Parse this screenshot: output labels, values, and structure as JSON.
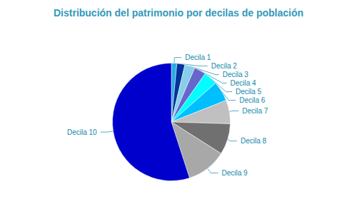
{
  "chart_data": {
    "type": "pie",
    "title": "Distribución del patrimonio por decilas de población",
    "categories": [
      "Decila 1",
      "Decila 2",
      "Decila 3",
      "Decila 4",
      "Decila 5",
      "Decila 6",
      "Decila 7",
      "Decila 8",
      "Decila 9",
      "Decila 10"
    ],
    "values": [
      1.5,
      2.2,
      2.8,
      3.2,
      3.8,
      5.5,
      6.5,
      8.5,
      11.0,
      55.0
    ],
    "colors": [
      "#29ABE2",
      "#003399",
      "#87CEEB",
      "#6666CC",
      "#00FFFF",
      "#00BFFF",
      "#C0C0C0",
      "#707070",
      "#A8A8A8",
      "#0000CC"
    ],
    "legend": false
  }
}
